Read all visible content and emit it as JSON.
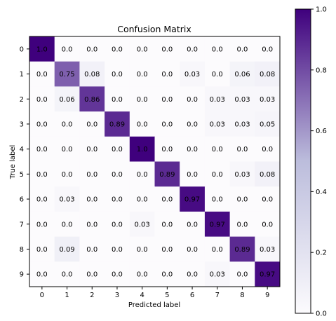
{
  "chart_data": {
    "type": "heatmap",
    "title": "Confusion Matrix",
    "xlabel": "Predicted label",
    "ylabel": "True label",
    "x_tick_labels": [
      "0",
      "1",
      "2",
      "3",
      "4",
      "5",
      "6",
      "7",
      "8",
      "9"
    ],
    "y_tick_labels": [
      "0",
      "1",
      "2",
      "3",
      "4",
      "5",
      "6",
      "7",
      "8",
      "9"
    ],
    "cell_labels": [
      [
        "1.0",
        "0.0",
        "0.0",
        "0.0",
        "0.0",
        "0.0",
        "0.0",
        "0.0",
        "0.0",
        "0.0"
      ],
      [
        "0.0",
        "0.75",
        "0.08",
        "0.0",
        "0.0",
        "0.0",
        "0.03",
        "0.0",
        "0.06",
        "0.08"
      ],
      [
        "0.0",
        "0.06",
        "0.86",
        "0.0",
        "0.0",
        "0.0",
        "0.0",
        "0.03",
        "0.03",
        "0.03"
      ],
      [
        "0.0",
        "0.0",
        "0.0",
        "0.89",
        "0.0",
        "0.0",
        "0.0",
        "0.03",
        "0.03",
        "0.05"
      ],
      [
        "0.0",
        "0.0",
        "0.0",
        "0.0",
        "1.0",
        "0.0",
        "0.0",
        "0.0",
        "0.0",
        "0.0"
      ],
      [
        "0.0",
        "0.0",
        "0.0",
        "0.0",
        "0.0",
        "0.89",
        "0.0",
        "0.0",
        "0.03",
        "0.08"
      ],
      [
        "0.0",
        "0.03",
        "0.0",
        "0.0",
        "0.0",
        "0.0",
        "0.97",
        "0.0",
        "0.0",
        "0.0"
      ],
      [
        "0.0",
        "0.0",
        "0.0",
        "0.0",
        "0.03",
        "0.0",
        "0.0",
        "0.97",
        "0.0",
        "0.0"
      ],
      [
        "0.0",
        "0.09",
        "0.0",
        "0.0",
        "0.0",
        "0.0",
        "0.0",
        "0.0",
        "0.89",
        "0.03"
      ],
      [
        "0.0",
        "0.0",
        "0.0",
        "0.0",
        "0.0",
        "0.0",
        "0.0",
        "0.03",
        "0.0",
        "0.97"
      ]
    ],
    "colormap": {
      "name": "Purples",
      "low_color": "#fcfbfd",
      "high_color": "#3f007d"
    },
    "colorbar": {
      "range": [
        0.0,
        1.0
      ],
      "tick_labels": [
        "0.0",
        "0.2",
        "0.4",
        "0.6",
        "0.8",
        "1.0"
      ]
    }
  }
}
